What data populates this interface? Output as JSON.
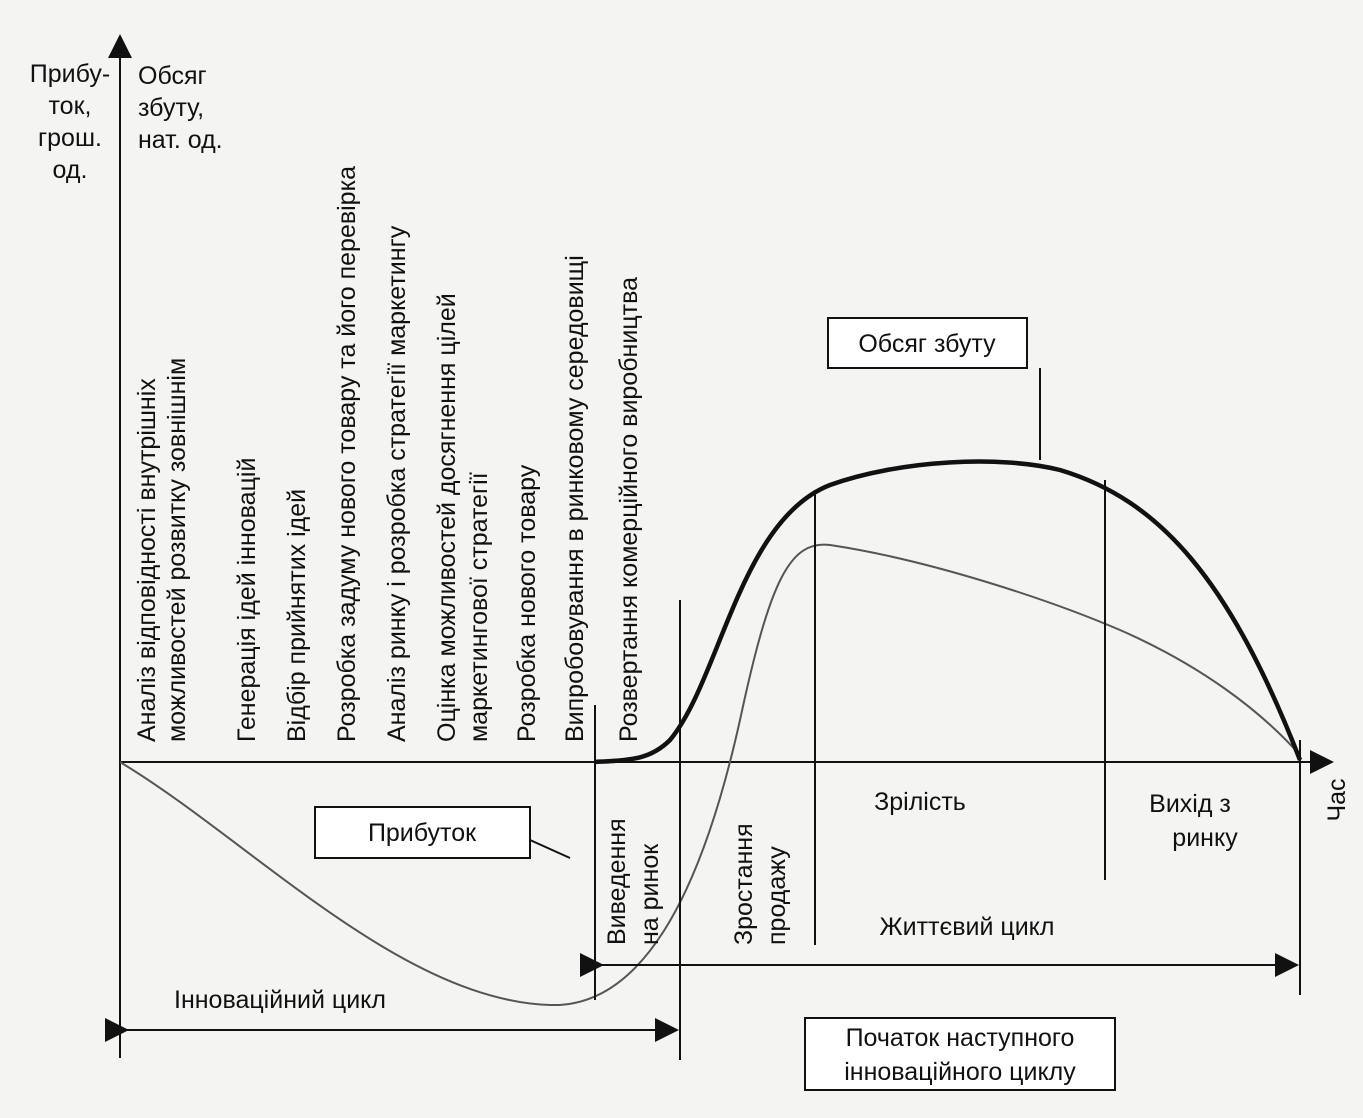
{
  "axes": {
    "profit_label": [
      "Прибу-",
      "ток,",
      "грош.",
      "од."
    ],
    "volume_label": [
      "Обсяг",
      "збуту,",
      "нат. од."
    ],
    "time_label": "Час"
  },
  "stages": [
    [
      "Аналіз відповідності  внутрішніх",
      "можливостей  розвитку зовнішнім"
    ],
    [
      "Генерація ідей інновацій"
    ],
    [
      "Відбір прийнятих ідей"
    ],
    [
      "Розробка задуму нового товару та його перевірка"
    ],
    [
      "Аналіз ринку і розробка стратегії маркетингу"
    ],
    [
      "Оцінка можливостей досягнення цілей",
      "маркетингової стратегії"
    ],
    [
      "Розробка нового товару"
    ],
    [
      "Випробовування  в ринковому середовищі"
    ],
    [
      "Розвертання комерційного виробництва"
    ]
  ],
  "sales_box": "Обсяг збуту",
  "profit_box": "Прибуток",
  "phases": {
    "introduction": [
      "Виведення",
      "на ринок"
    ],
    "growth": [
      "Зростання",
      "продажу"
    ],
    "maturity": "Зрілість",
    "exit": [
      "Вихід з",
      "ринку"
    ]
  },
  "life_cycle": "Життєвий цикл",
  "innovation_cycle": "Інноваційний цикл",
  "next_cycle": [
    "Початок наступного",
    "інноваційного циклу"
  ]
}
